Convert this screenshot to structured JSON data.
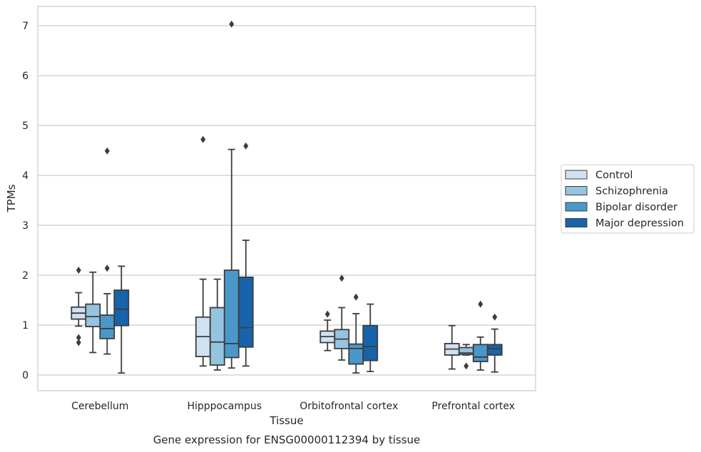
{
  "chart_data": {
    "type": "box",
    "title": "",
    "xlabel": "Tissue",
    "ylabel": "TPMs",
    "caption": "Gene expression for ENSG00000112394 by tissue",
    "categories": [
      "Cerebellum",
      "Hipppocampus",
      "Orbitofrontal cortex",
      "Prefrontal cortex"
    ],
    "ylim": [
      -0.3,
      7.4
    ],
    "yticks": [
      0,
      1,
      2,
      3,
      4,
      5,
      6,
      7
    ],
    "grid": true,
    "legend_position": "right",
    "series": [
      {
        "name": "Control",
        "color": "#d0e2f1",
        "boxes": [
          {
            "whisker_low": 0.98,
            "q1": 1.12,
            "median": 1.24,
            "q3": 1.36,
            "whisker_high": 1.65,
            "outliers": [
              2.1,
              0.75,
              0.65
            ]
          },
          {
            "whisker_low": 0.18,
            "q1": 0.37,
            "median": 0.77,
            "q3": 1.16,
            "whisker_high": 1.92,
            "outliers": [
              4.72
            ]
          },
          {
            "whisker_low": 0.49,
            "q1": 0.65,
            "median": 0.77,
            "q3": 0.88,
            "whisker_high": 1.1,
            "outliers": [
              1.22
            ]
          },
          {
            "whisker_low": 0.12,
            "q1": 0.4,
            "median": 0.52,
            "q3": 0.63,
            "whisker_high": 0.99,
            "outliers": []
          }
        ]
      },
      {
        "name": "Schizophrenia",
        "color": "#94c4df",
        "boxes": [
          {
            "whisker_low": 0.45,
            "q1": 0.97,
            "median": 1.17,
            "q3": 1.42,
            "whisker_high": 2.06,
            "outliers": []
          },
          {
            "whisker_low": 0.1,
            "q1": 0.2,
            "median": 0.66,
            "q3": 1.35,
            "whisker_high": 1.92,
            "outliers": []
          },
          {
            "whisker_low": 0.3,
            "q1": 0.53,
            "median": 0.72,
            "q3": 0.91,
            "whisker_high": 1.35,
            "outliers": [
              1.94
            ]
          },
          {
            "whisker_low": 0.4,
            "q1": 0.41,
            "median": 0.44,
            "q3": 0.55,
            "whisker_high": 0.61,
            "outliers": [
              0.18
            ]
          }
        ]
      },
      {
        "name": "Bipolar disorder",
        "color": "#4a98c9",
        "boxes": [
          {
            "whisker_low": 0.42,
            "q1": 0.73,
            "median": 0.93,
            "q3": 1.2,
            "whisker_high": 1.63,
            "outliers": [
              4.49,
              2.14
            ]
          },
          {
            "whisker_low": 0.14,
            "q1": 0.35,
            "median": 0.63,
            "q3": 2.1,
            "whisker_high": 4.52,
            "outliers": [
              7.03
            ]
          },
          {
            "whisker_low": 0.04,
            "q1": 0.22,
            "median": 0.53,
            "q3": 0.62,
            "whisker_high": 1.23,
            "outliers": [
              1.56
            ]
          },
          {
            "whisker_low": 0.1,
            "q1": 0.27,
            "median": 0.36,
            "q3": 0.61,
            "whisker_high": 0.76,
            "outliers": [
              1.42
            ]
          }
        ]
      },
      {
        "name": "Major depression",
        "color": "#1764ab",
        "boxes": [
          {
            "whisker_low": 0.04,
            "q1": 0.99,
            "median": 1.32,
            "q3": 1.7,
            "whisker_high": 2.18,
            "outliers": []
          },
          {
            "whisker_low": 0.18,
            "q1": 0.56,
            "median": 0.95,
            "q3": 1.96,
            "whisker_high": 2.7,
            "outliers": [
              4.59
            ]
          },
          {
            "whisker_low": 0.07,
            "q1": 0.29,
            "median": 0.57,
            "q3": 0.99,
            "whisker_high": 1.42,
            "outliers": []
          },
          {
            "whisker_low": 0.06,
            "q1": 0.4,
            "median": 0.53,
            "q3": 0.61,
            "whisker_high": 0.92,
            "outliers": [
              1.16
            ]
          }
        ]
      }
    ]
  }
}
